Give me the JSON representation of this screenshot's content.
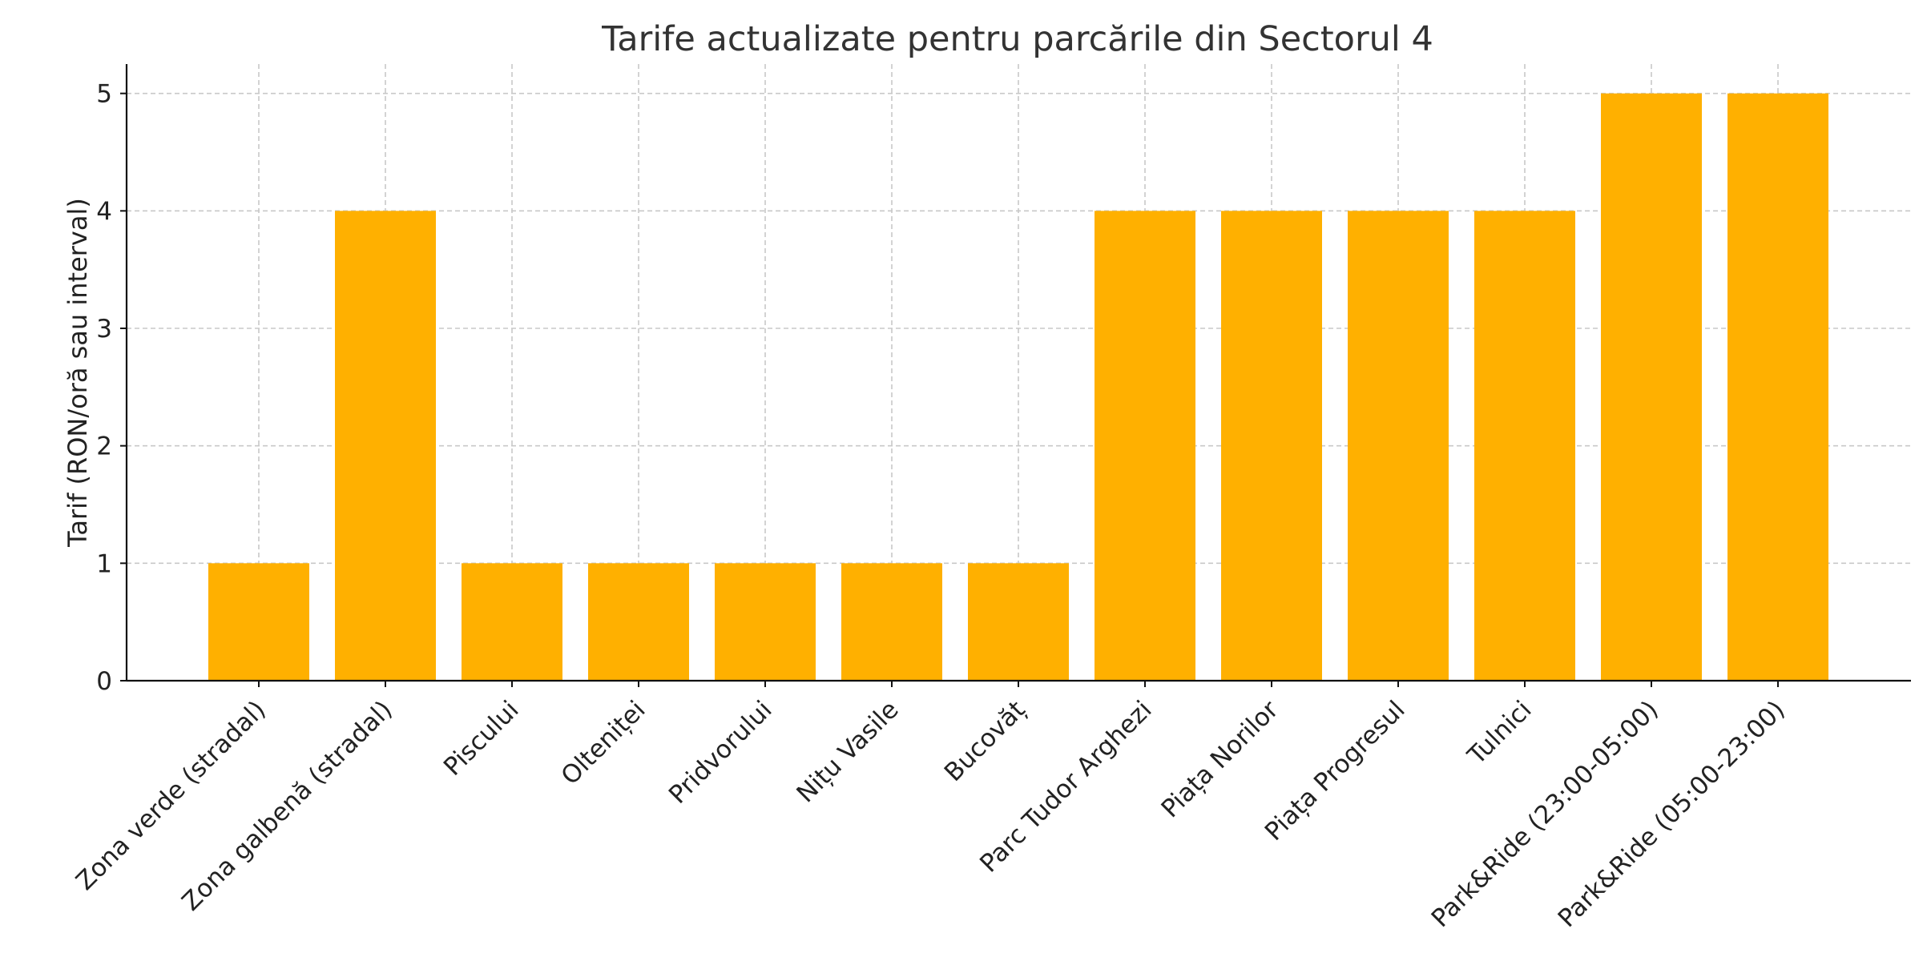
{
  "chart_data": {
    "type": "bar",
    "title": "Tarife actualizate pentru parcările din Sectorul 4",
    "xlabel": "",
    "ylabel": "Tarif (RON/oră sau interval)",
    "categories": [
      "Zona verde (stradal)",
      "Zona galbenă (stradal)",
      "Piscului",
      "Olteniței",
      "Pridvorului",
      "Nițu Vasile",
      "Bucovăț",
      "Parc Tudor Arghezi",
      "Piața Norilor",
      "Piața Progresul",
      "Tulnici",
      "Park&Ride (23:00-05:00)",
      "Park&Ride (05:00-23:00)"
    ],
    "values": [
      1,
      4,
      1,
      1,
      1,
      1,
      1,
      4,
      4,
      4,
      4,
      5,
      5
    ],
    "ylim": [
      0,
      5.25
    ],
    "yticks": [
      0,
      1,
      2,
      3,
      4,
      5
    ],
    "grid": true,
    "bar_color": "#FFB000"
  }
}
